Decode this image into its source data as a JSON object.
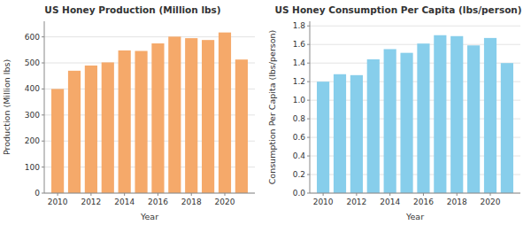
{
  "chart_data": [
    {
      "type": "bar",
      "title": "US Honey Production (Million lbs)",
      "xlabel": "Year",
      "ylabel": "Production (Million lbs)",
      "x": [
        2010,
        2011,
        2012,
        2013,
        2014,
        2015,
        2016,
        2017,
        2018,
        2019,
        2020,
        2021
      ],
      "values": [
        400,
        470,
        490,
        502,
        548,
        546,
        575,
        601,
        595,
        588,
        617,
        513
      ],
      "color": "#F5A96A",
      "xlim": [
        2009.2,
        2021.8
      ],
      "xticks": [
        2010,
        2012,
        2014,
        2016,
        2018,
        2020
      ],
      "ylim": [
        0,
        660
      ],
      "yticks": [
        0,
        100,
        200,
        300,
        400,
        500,
        600
      ],
      "grid": true
    },
    {
      "type": "bar",
      "title": "US Honey Consumption Per Capita (lbs/person)",
      "xlabel": "Year",
      "ylabel": "Consumption Per Capita (lbs/person)",
      "x": [
        2010,
        2011,
        2012,
        2013,
        2014,
        2015,
        2016,
        2017,
        2018,
        2019,
        2020,
        2021
      ],
      "values": [
        1.2,
        1.28,
        1.27,
        1.44,
        1.55,
        1.51,
        1.61,
        1.7,
        1.69,
        1.59,
        1.67,
        1.4
      ],
      "color": "#87CEEB",
      "xlim": [
        2009.2,
        2021.8
      ],
      "xticks": [
        2010,
        2012,
        2014,
        2016,
        2018,
        2020
      ],
      "ylim": [
        0,
        1.85
      ],
      "yticks": [
        {
          "value": 0,
          "label": "0.0"
        },
        0.2,
        0.4,
        0.6,
        0.8,
        {
          "value": 1,
          "label": "1.0"
        },
        1.2,
        1.4,
        1.6,
        1.8
      ],
      "grid": true
    }
  ]
}
